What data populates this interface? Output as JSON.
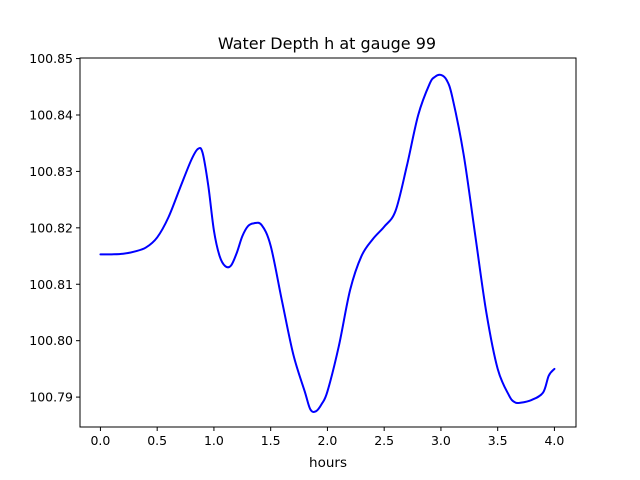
{
  "chart_data": {
    "type": "line",
    "title": "Water Depth h at gauge 99",
    "xlabel": "hours",
    "ylabel": "",
    "xlim": [
      -0.18,
      4.19
    ],
    "ylim": [
      100.7847,
      100.8501
    ],
    "xticks": [
      0.0,
      0.5,
      1.0,
      1.5,
      2.0,
      2.5,
      3.0,
      3.5,
      4.0
    ],
    "xtick_labels": [
      "0.0",
      "0.5",
      "1.0",
      "1.5",
      "2.0",
      "2.5",
      "3.0",
      "3.5",
      "4.0"
    ],
    "yticks": [
      100.79,
      100.8,
      100.81,
      100.82,
      100.83,
      100.84,
      100.85
    ],
    "ytick_labels": [
      "100.79",
      "100.80",
      "100.81",
      "100.82",
      "100.83",
      "100.84",
      "100.85"
    ],
    "grid": false,
    "series": [
      {
        "name": "",
        "color": "#0000ff",
        "x": [
          0.0,
          0.1,
          0.2,
          0.3,
          0.4,
          0.5,
          0.6,
          0.7,
          0.8,
          0.86,
          0.9,
          0.95,
          1.0,
          1.05,
          1.1,
          1.15,
          1.2,
          1.25,
          1.3,
          1.35,
          1.42,
          1.5,
          1.6,
          1.7,
          1.8,
          1.85,
          1.9,
          1.95,
          2.0,
          2.1,
          2.2,
          2.3,
          2.4,
          2.5,
          2.6,
          2.7,
          2.8,
          2.9,
          2.95,
          3.0,
          3.05,
          3.1,
          3.2,
          3.3,
          3.4,
          3.5,
          3.6,
          3.65,
          3.7,
          3.8,
          3.9,
          3.95,
          4.0
        ],
        "y": [
          100.8153,
          100.8153,
          100.8154,
          100.8158,
          100.8165,
          100.8183,
          100.8219,
          100.827,
          100.832,
          100.834,
          100.8333,
          100.8275,
          100.8195,
          100.815,
          100.8132,
          100.8133,
          100.8155,
          100.8185,
          100.8203,
          100.8208,
          100.8205,
          100.8168,
          100.807,
          100.7975,
          100.791,
          100.7878,
          100.7875,
          100.7888,
          100.791,
          100.799,
          100.809,
          100.815,
          100.818,
          100.8202,
          100.823,
          100.831,
          100.84,
          100.8455,
          100.8468,
          100.8471,
          100.8462,
          100.8432,
          100.833,
          100.819,
          100.805,
          100.795,
          100.7903,
          100.7891,
          100.789,
          100.7895,
          100.7908,
          100.7938,
          100.795
        ]
      }
    ]
  }
}
